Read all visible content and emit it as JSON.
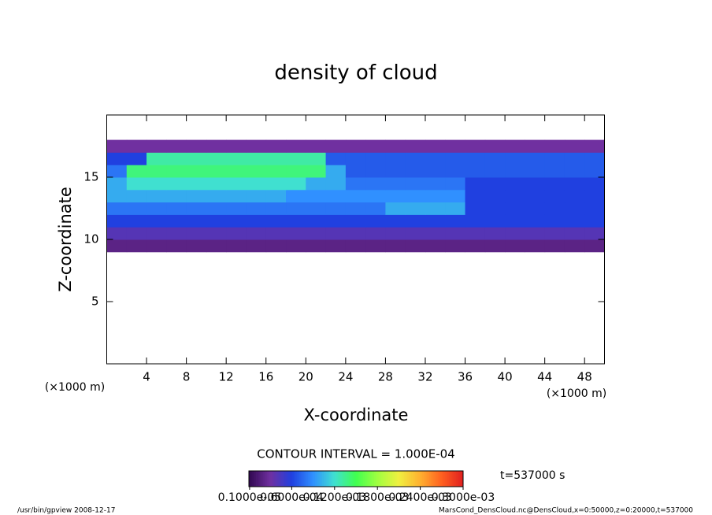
{
  "chart_data": {
    "type": "heatmap",
    "title": "density of cloud",
    "x_label": "X-coordinate",
    "y_label": "Z-coordinate",
    "x_unit_left": "(×1000 m)",
    "x_unit_right": "(×1000 m)",
    "xlim": [
      0,
      50
    ],
    "ylim": [
      0,
      20
    ],
    "xticks": [
      4,
      8,
      12,
      16,
      20,
      24,
      28,
      32,
      36,
      40,
      44,
      48
    ],
    "yticks": [
      5,
      10,
      15
    ],
    "x": [
      1,
      3,
      5,
      7,
      9,
      11,
      13,
      15,
      17,
      19,
      21,
      23,
      25,
      27,
      29,
      31,
      33,
      35,
      37,
      39,
      41,
      43,
      45,
      47,
      49
    ],
    "y": [
      9.5,
      10.5,
      11.5,
      12.5,
      13.5,
      14.5,
      15.5,
      16.5,
      17.5
    ],
    "z": [
      [
        2e-05,
        2e-05,
        2e-05,
        2e-05,
        2e-05,
        2e-05,
        2e-05,
        2e-05,
        2e-05,
        2e-05,
        2e-05,
        2e-05,
        2e-05,
        2e-05,
        2e-05,
        2e-05,
        2e-05,
        2e-05,
        2e-05,
        2e-05,
        2e-05,
        2e-05,
        2e-05,
        2e-05,
        2e-05
      ],
      [
        4e-05,
        4e-05,
        4e-05,
        4e-05,
        4e-05,
        4e-05,
        4e-05,
        4e-05,
        4e-05,
        4e-05,
        4e-05,
        4e-05,
        4e-05,
        4e-05,
        4e-05,
        4e-05,
        4e-05,
        4e-05,
        4e-05,
        4e-05,
        4e-05,
        4e-05,
        4e-05,
        4e-05,
        4e-05
      ],
      [
        6e-05,
        6e-05,
        6e-05,
        6e-05,
        6e-05,
        6e-05,
        6e-05,
        6e-05,
        6e-05,
        6e-05,
        6e-05,
        6e-05,
        6e-05,
        6e-05,
        6e-05,
        6e-05,
        6e-05,
        6e-05,
        6e-05,
        6e-05,
        6e-05,
        6e-05,
        6e-05,
        6e-05,
        6e-05
      ],
      [
        8e-05,
        8e-05,
        8e-05,
        8e-05,
        8e-05,
        8e-05,
        8e-05,
        8e-05,
        8e-05,
        8e-05,
        8e-05,
        8e-05,
        8e-05,
        8e-05,
        0.0001,
        0.0001,
        0.0001,
        0.0001,
        6e-05,
        6e-05,
        6e-05,
        6e-05,
        6e-05,
        6e-05,
        6e-05
      ],
      [
        0.0001,
        0.0001,
        0.0001,
        0.0001,
        0.0001,
        0.0001,
        0.0001,
        0.0001,
        0.0001,
        9e-05,
        9e-05,
        9e-05,
        9e-05,
        9e-05,
        9e-05,
        9e-05,
        9e-05,
        9e-05,
        6e-05,
        6e-05,
        6e-05,
        6e-05,
        6e-05,
        6e-05,
        6e-05
      ],
      [
        0.0001,
        0.00012,
        0.00012,
        0.00012,
        0.00012,
        0.00012,
        0.00012,
        0.00012,
        0.00012,
        0.00012,
        0.0001,
        0.0001,
        8e-05,
        8e-05,
        8e-05,
        8e-05,
        8e-05,
        8e-05,
        6e-05,
        6e-05,
        6e-05,
        6e-05,
        6e-05,
        6e-05,
        6e-05
      ],
      [
        8e-05,
        0.00014,
        0.00014,
        0.00014,
        0.00014,
        0.00014,
        0.00014,
        0.00014,
        0.00014,
        0.00014,
        0.00014,
        0.0001,
        7e-05,
        7e-05,
        7e-05,
        7e-05,
        7e-05,
        7e-05,
        7e-05,
        7e-05,
        7e-05,
        7e-05,
        7e-05,
        7e-05,
        7e-05
      ],
      [
        6e-05,
        6e-05,
        0.00013,
        0.00013,
        0.00013,
        0.00013,
        0.00013,
        0.00013,
        0.00013,
        0.00013,
        0.00013,
        7e-05,
        7e-05,
        7e-05,
        7e-05,
        7e-05,
        7e-05,
        7e-05,
        7e-05,
        7e-05,
        7e-05,
        7e-05,
        7e-05,
        7e-05,
        7e-05
      ],
      [
        3e-05,
        3e-05,
        3e-05,
        3e-05,
        3e-05,
        3e-05,
        3e-05,
        3e-05,
        3e-05,
        3e-05,
        3e-05,
        3e-05,
        3e-05,
        3e-05,
        3e-05,
        3e-05,
        3e-05,
        3e-05,
        3e-05,
        3e-05,
        3e-05,
        3e-05,
        3e-05,
        3e-05,
        3e-05
      ]
    ],
    "clim": [
      0,
      0.0003
    ],
    "colorscale": [
      "#300850",
      "#7030a0",
      "#2040e0",
      "#3090ff",
      "#40e0d0",
      "#40ff50",
      "#a0ff40",
      "#f0f040",
      "#ffb030",
      "#ff6020",
      "#e02020"
    ],
    "colorbar_ticks": [
      {
        "value": 1e-06,
        "label": "0.1000e-05"
      },
      {
        "value": 6e-05,
        "label": "0.6000e-04"
      },
      {
        "value": 0.00012,
        "label": "0.1200e-03"
      },
      {
        "value": 0.00018,
        "label": "0.1800e-03"
      },
      {
        "value": 0.00024,
        "label": "0.2400e-03"
      },
      {
        "value": 0.0003,
        "label": "0.3000e-03"
      }
    ],
    "contour_interval": "CONTOUR INTERVAL = 1.000E-04",
    "time_label": "t=537000 s",
    "footer_left": "/usr/bin/gpview   2008-12-17",
    "footer_right": "MarsCond_DensCloud.nc@DensCloud,x=0:50000,z=0:20000,t=537000"
  }
}
